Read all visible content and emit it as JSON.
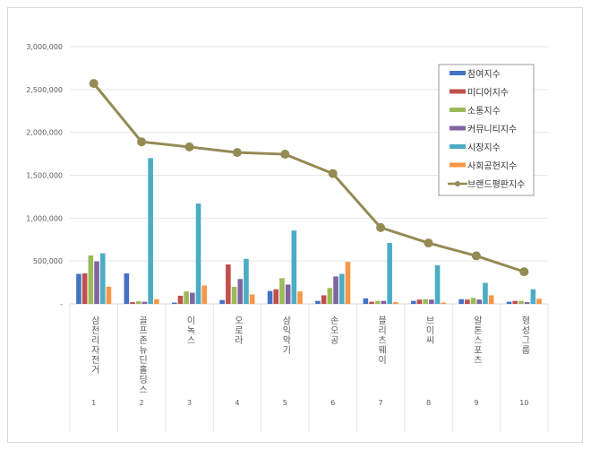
{
  "chart_data": {
    "type": "bar",
    "title": "",
    "xlabel": "",
    "ylabel": "",
    "ylim": [
      0,
      3000000
    ],
    "yticks": [
      "-",
      "500,000",
      "1,000,000",
      "1,500,000",
      "2,000,000",
      "2,500,000",
      "3,000,000"
    ],
    "ytick_values": [
      0,
      500000,
      1000000,
      1500000,
      2000000,
      2500000,
      3000000
    ],
    "grid": true,
    "legend_position": "top-right",
    "categories": [
      "삼천리자전거",
      "골프존뉴딘홀딩스",
      "이녹스",
      "오로라",
      "삼익악기",
      "손오공",
      "블리츠웨이",
      "브이씨",
      "알톤스포츠",
      "형성그룹"
    ],
    "ranks": [
      "1",
      "2",
      "3",
      "4",
      "5",
      "6",
      "7",
      "8",
      "9",
      "10"
    ],
    "series": [
      {
        "name": "참여지수",
        "kind": "bar",
        "color": "#4472c4",
        "values": [
          350000,
          355000,
          15000,
          45000,
          150000,
          35000,
          65000,
          35000,
          55000,
          25000
        ]
      },
      {
        "name": "미디어지수",
        "kind": "bar",
        "color": "#c0504d",
        "values": [
          355000,
          20000,
          95000,
          460000,
          170000,
          100000,
          25000,
          50000,
          50000,
          35000
        ]
      },
      {
        "name": "소통지수",
        "kind": "bar",
        "color": "#9bbb59",
        "values": [
          565000,
          30000,
          145000,
          200000,
          300000,
          185000,
          35000,
          55000,
          70000,
          35000
        ]
      },
      {
        "name": "커뮤니티지수",
        "kind": "bar",
        "color": "#8064a2",
        "values": [
          495000,
          25000,
          130000,
          290000,
          225000,
          320000,
          35000,
          50000,
          50000,
          20000
        ]
      },
      {
        "name": "시장지수",
        "kind": "bar",
        "color": "#4bacc6",
        "values": [
          590000,
          1700000,
          1170000,
          525000,
          855000,
          350000,
          710000,
          450000,
          245000,
          170000
        ]
      },
      {
        "name": "사회공헌지수",
        "kind": "bar",
        "color": "#f79646",
        "values": [
          200000,
          55000,
          215000,
          110000,
          145000,
          490000,
          20000,
          15000,
          100000,
          60000
        ]
      },
      {
        "name": "브랜드평판지수",
        "kind": "line",
        "color": "#948a54",
        "values": [
          2570000,
          1890000,
          1830000,
          1765000,
          1745000,
          1520000,
          890000,
          710000,
          560000,
          375000
        ]
      }
    ]
  }
}
